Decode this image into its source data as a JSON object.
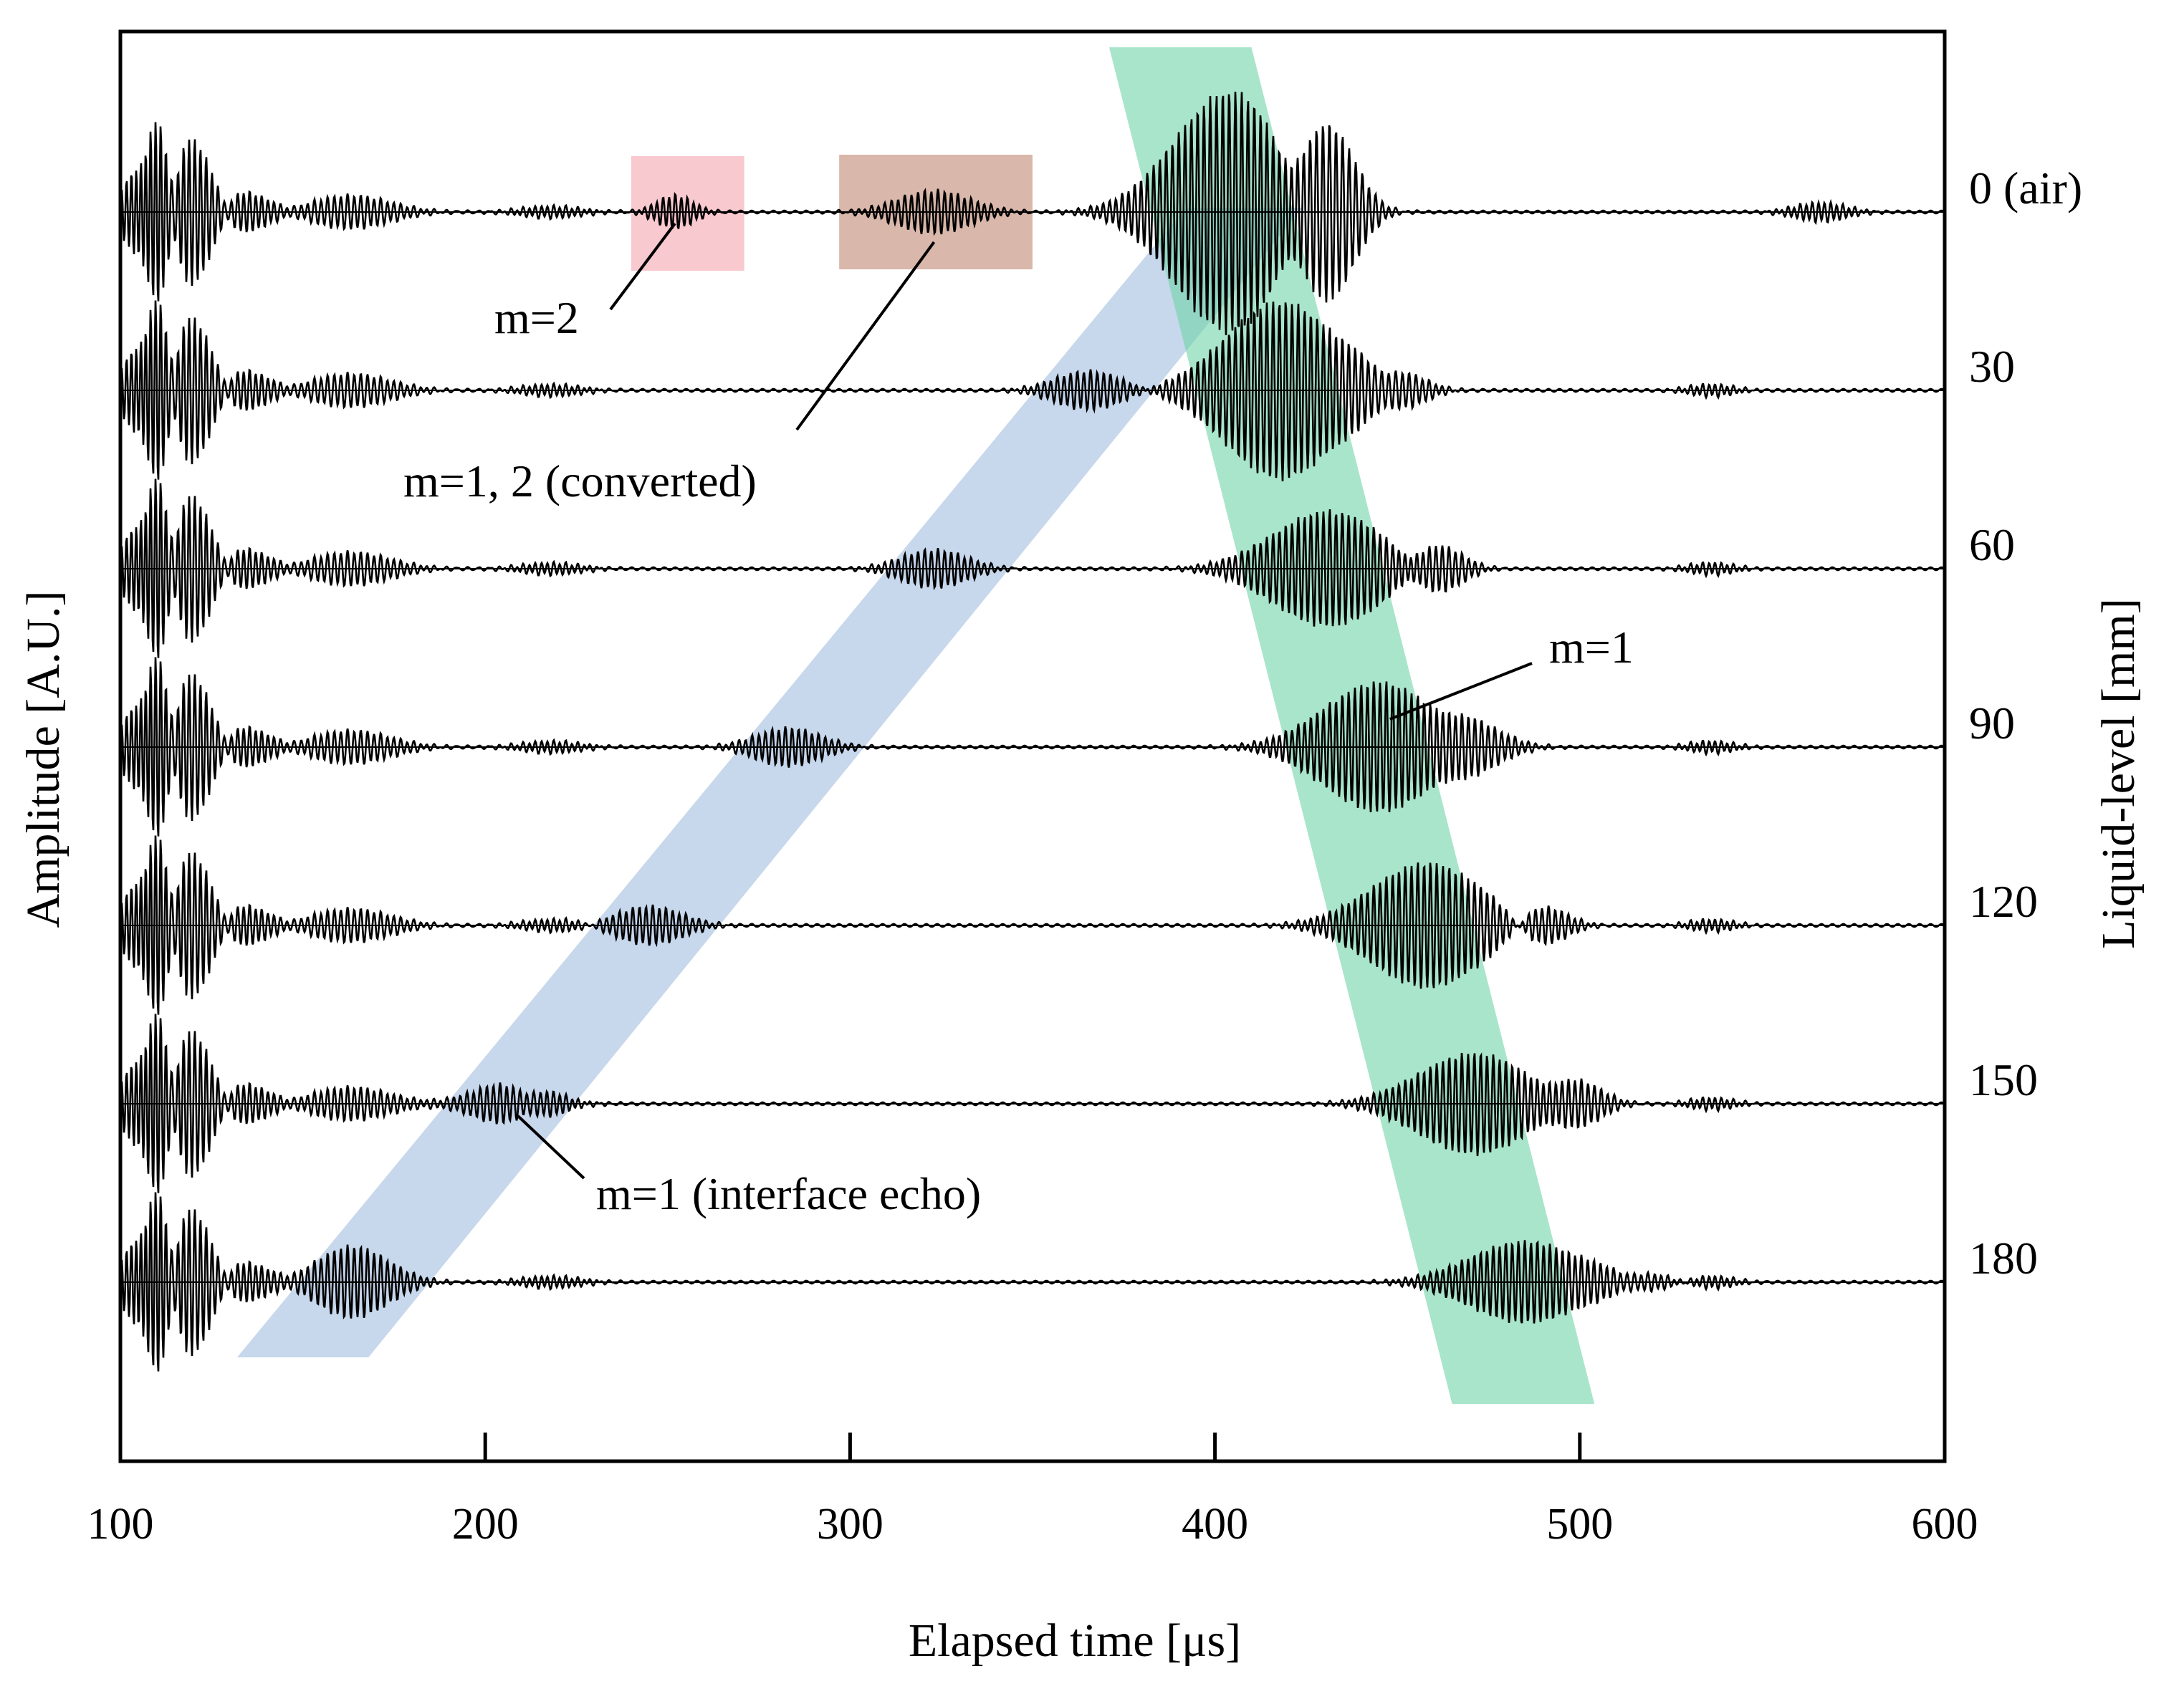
{
  "chart_data": {
    "type": "line",
    "title": "",
    "xlabel": "Elapsed time [μs]",
    "ylabel": "Amplitude [A.U.]",
    "y2label": "Liquid-level [mm]",
    "xlim": [
      100,
      600
    ],
    "xticks": [
      100,
      200,
      300,
      400,
      500,
      600
    ],
    "grid": false,
    "series": [
      {
        "name": "0 (air)",
        "level": 0,
        "interface_echo_us": null,
        "m1_echo_us": 404,
        "m1_amplitude": 1.0
      },
      {
        "name": "30",
        "level": 30,
        "interface_echo_us": 365,
        "m1_echo_us": 418,
        "m1_amplitude": 0.74
      },
      {
        "name": "60",
        "level": 60,
        "interface_echo_us": 323,
        "m1_echo_us": 431,
        "m1_amplitude": 0.48
      },
      {
        "name": "90",
        "level": 90,
        "interface_echo_us": 283,
        "m1_echo_us": 445,
        "m1_amplitude": 0.54
      },
      {
        "name": "120",
        "level": 120,
        "interface_echo_us": 245,
        "m1_echo_us": 458,
        "m1_amplitude": 0.52
      },
      {
        "name": "150",
        "level": 150,
        "interface_echo_us": 205,
        "m1_echo_us": 471,
        "m1_amplitude": 0.42
      },
      {
        "name": "180",
        "level": 180,
        "interface_echo_us": 164,
        "m1_echo_us": 485,
        "m1_amplitude": 0.34
      }
    ],
    "highlights": [
      {
        "name": "m=2 box",
        "x_range": [
          240,
          271
        ],
        "color": "#f8c9cf"
      },
      {
        "name": "m=1, 2 (converted) box",
        "x_range": [
          297,
          350
        ],
        "color": "#d9b7ab"
      },
      {
        "name": "interface echo band",
        "color": "#a9c1e2"
      },
      {
        "name": "m=1 band",
        "color": "#70d3a9"
      }
    ],
    "annotations": [
      {
        "text": "m=2",
        "target_us": 252
      },
      {
        "text": "m=1, 2 (converted)",
        "target_us": 323
      },
      {
        "text": "m=1",
        "target_us": 446
      },
      {
        "text": "m=1 (interface echo)",
        "target_us": 207
      }
    ]
  }
}
